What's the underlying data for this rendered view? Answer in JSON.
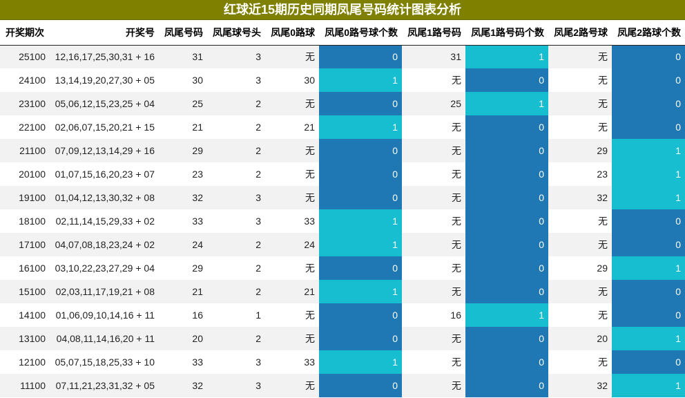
{
  "title": "红球近15期历史同期凤尾号码统计图表分析",
  "columns": [
    "开奖期次",
    "开奖号",
    "凤尾号码",
    "凤尾球号头",
    "凤尾0路球",
    "凤尾0路号球个数",
    "凤尾1路号码",
    "凤尾1路号码个数",
    "凤尾2路号球",
    "凤尾2路球个数"
  ],
  "colors": {
    "title_bg": "#808000",
    "count_zero": "#1f78b4",
    "count_one": "#17becf",
    "row_stripe": "#f2f2f2"
  },
  "chart_data": {
    "type": "table",
    "title": "红球近15期历史同期凤尾号码统计图表分析",
    "columns": [
      "开奖期次",
      "开奖号",
      "凤尾号码",
      "凤尾球号头",
      "凤尾0路球",
      "凤尾0路号球个数",
      "凤尾1路号码",
      "凤尾1路号码个数",
      "凤尾2路号球",
      "凤尾2路球个数"
    ],
    "rows": [
      [
        "25100",
        "12,16,17,25,30,31 + 16",
        "31",
        "3",
        "无",
        "0",
        "31",
        "1",
        "无",
        "0"
      ],
      [
        "24100",
        "13,14,19,20,27,30 + 05",
        "30",
        "3",
        "30",
        "1",
        "无",
        "0",
        "无",
        "0"
      ],
      [
        "23100",
        "05,06,12,15,23,25 + 04",
        "25",
        "2",
        "无",
        "0",
        "25",
        "1",
        "无",
        "0"
      ],
      [
        "22100",
        "02,06,07,15,20,21 + 15",
        "21",
        "2",
        "21",
        "1",
        "无",
        "0",
        "无",
        "0"
      ],
      [
        "21100",
        "07,09,12,13,14,29 + 16",
        "29",
        "2",
        "无",
        "0",
        "无",
        "0",
        "29",
        "1"
      ],
      [
        "20100",
        "01,07,15,16,20,23 + 07",
        "23",
        "2",
        "无",
        "0",
        "无",
        "0",
        "23",
        "1"
      ],
      [
        "19100",
        "01,04,12,13,30,32 + 08",
        "32",
        "3",
        "无",
        "0",
        "无",
        "0",
        "32",
        "1"
      ],
      [
        "18100",
        "02,11,14,15,29,33 + 02",
        "33",
        "3",
        "33",
        "1",
        "无",
        "0",
        "无",
        "0"
      ],
      [
        "17100",
        "04,07,08,18,23,24 + 02",
        "24",
        "2",
        "24",
        "1",
        "无",
        "0",
        "无",
        "0"
      ],
      [
        "16100",
        "03,10,22,23,27,29 + 04",
        "29",
        "2",
        "无",
        "0",
        "无",
        "0",
        "29",
        "1"
      ],
      [
        "15100",
        "02,03,11,17,19,21 + 08",
        "21",
        "2",
        "21",
        "1",
        "无",
        "0",
        "无",
        "0"
      ],
      [
        "14100",
        "01,06,09,10,14,16 + 11",
        "16",
        "1",
        "无",
        "0",
        "16",
        "1",
        "无",
        "0"
      ],
      [
        "13100",
        "04,08,11,14,16,20 + 11",
        "20",
        "2",
        "无",
        "0",
        "无",
        "0",
        "20",
        "1"
      ],
      [
        "12100",
        "05,07,15,18,25,33 + 10",
        "33",
        "3",
        "33",
        "1",
        "无",
        "0",
        "无",
        "0"
      ],
      [
        "11100",
        "07,11,21,23,31,32 + 05",
        "32",
        "3",
        "无",
        "0",
        "无",
        "0",
        "32",
        "1"
      ]
    ]
  }
}
